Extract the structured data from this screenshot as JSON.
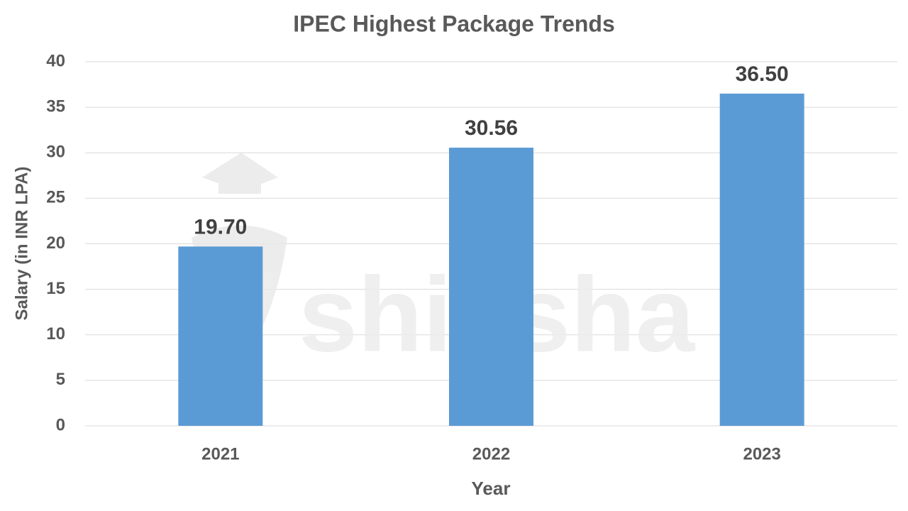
{
  "chart_data": {
    "type": "bar",
    "title": "IPEC Highest Package Trends",
    "x_label": "Year",
    "y_label": "Salary (in INR LPA)",
    "categories": [
      "2021",
      "2022",
      "2023"
    ],
    "values": [
      19.7,
      30.56,
      36.5
    ],
    "value_labels": [
      "19.70",
      "30.56",
      "36.50"
    ],
    "color": "#5b9bd5",
    "ylim": [
      0,
      40
    ],
    "yticks": [
      0,
      5,
      10,
      15,
      20,
      25,
      30,
      35,
      40
    ],
    "grid": true,
    "watermark": "shiksha"
  }
}
